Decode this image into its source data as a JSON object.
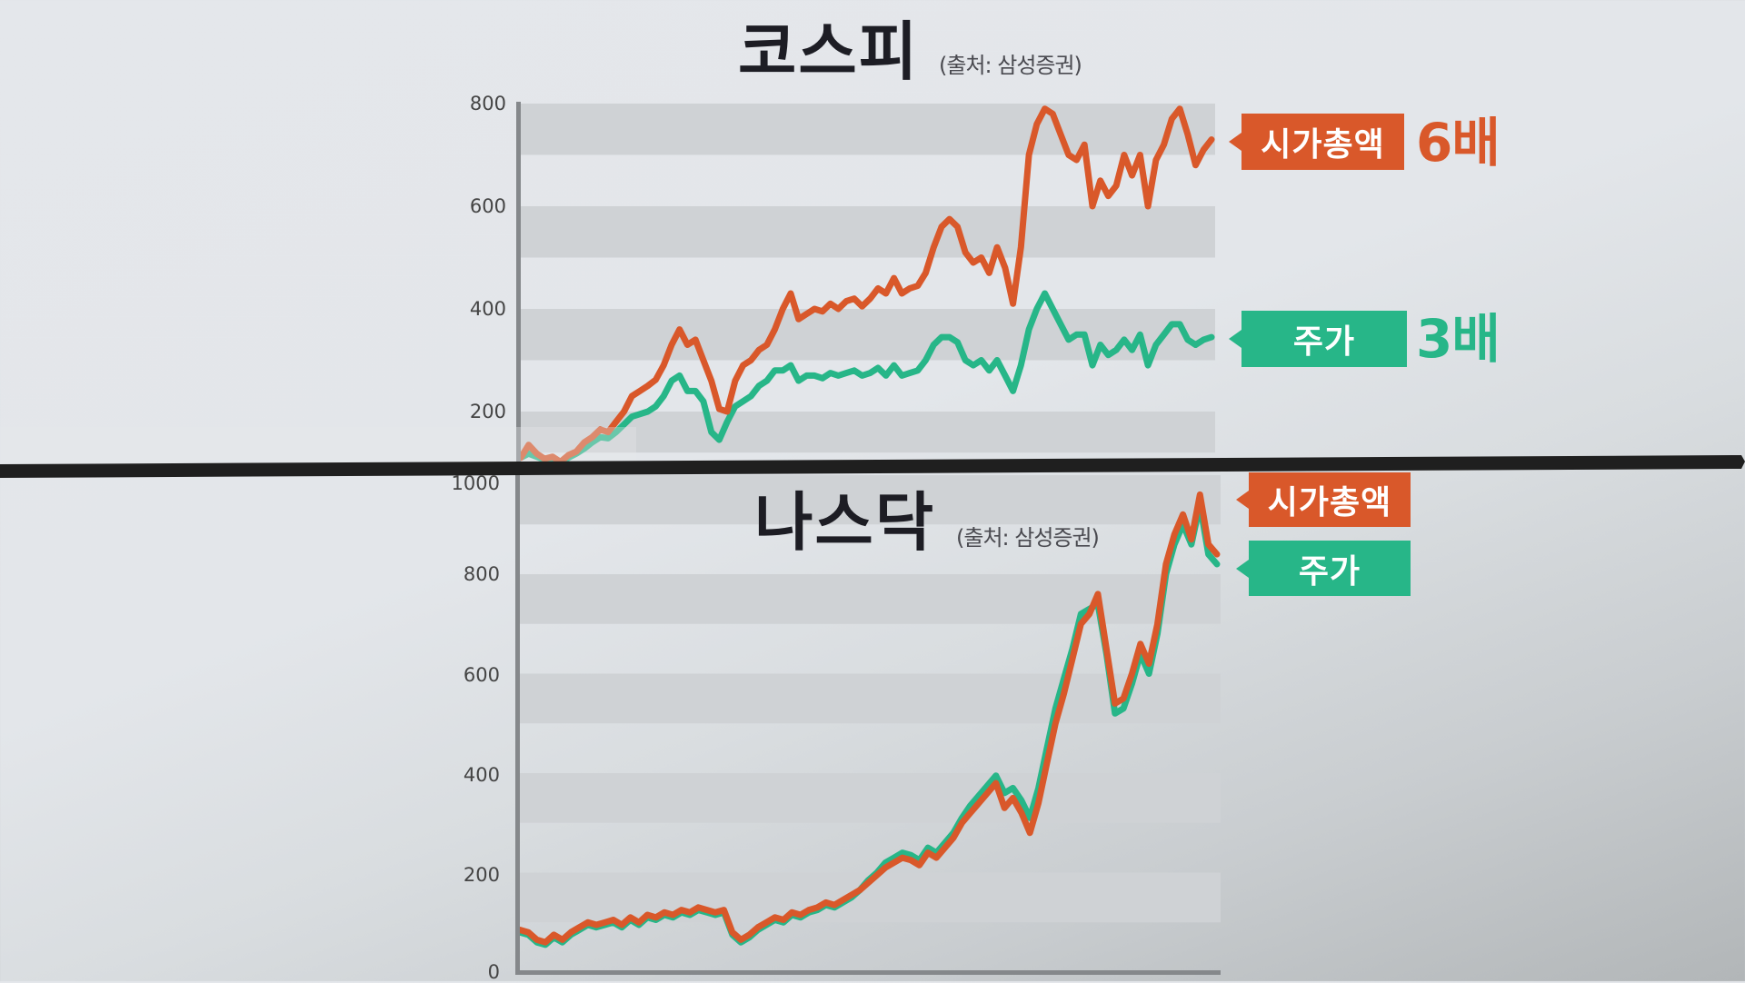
{
  "colors": {
    "market_cap": "#d9582a",
    "stock_price": "#27b688",
    "band": "#cfd2d5",
    "axis": "#85888b",
    "separator": "#1f1f1f"
  },
  "kospi": {
    "title": "코스피",
    "source": "(출처: 삼성증권)",
    "ticks": [
      "800",
      "600",
      "400",
      "200"
    ],
    "labels": {
      "market_cap": "시가총액",
      "stock_price": "주가"
    },
    "multiples": {
      "market_cap": "6배",
      "stock_price": "3배"
    }
  },
  "nasdaq": {
    "title": "나스닥",
    "source": "(출처: 삼성증권)",
    "ticks": [
      "1000",
      "800",
      "600",
      "400",
      "200",
      "0"
    ],
    "labels": {
      "market_cap": "시가총액",
      "stock_price": "주가"
    }
  },
  "chart_data": [
    {
      "type": "line",
      "title": "코스피 (출처: 삼성증권)",
      "xlabel": "",
      "ylabel": "",
      "ylim": [
        100,
        800
      ],
      "yticks": [
        200,
        400,
        600,
        800
      ],
      "grid": "alternating bands",
      "legend": {
        "position": "right",
        "entries": [
          "시가총액 6배",
          "주가 3배"
        ]
      },
      "series": [
        {
          "name": "시가총액",
          "color": "#d9582a",
          "values": [
            110,
            135,
            118,
            108,
            112,
            102,
            115,
            122,
            140,
            150,
            165,
            160,
            180,
            200,
            230,
            240,
            250,
            262,
            290,
            330,
            360,
            330,
            340,
            300,
            260,
            205,
            200,
            260,
            290,
            300,
            320,
            330,
            360,
            400,
            430,
            380,
            390,
            400,
            395,
            410,
            400,
            415,
            420,
            405,
            420,
            440,
            430,
            460,
            430,
            440,
            445,
            470,
            520,
            560,
            575,
            560,
            510,
            490,
            500,
            470,
            520,
            480,
            410,
            520,
            700,
            760,
            790,
            780,
            740,
            700,
            690,
            720,
            600,
            650,
            620,
            640,
            700,
            660,
            700,
            600,
            690,
            720,
            770,
            790,
            740,
            680,
            710,
            730
          ]
        },
        {
          "name": "주가",
          "color": "#27b688",
          "values": [
            110,
            118,
            112,
            106,
            110,
            100,
            110,
            118,
            128,
            140,
            150,
            148,
            160,
            175,
            190,
            195,
            200,
            210,
            230,
            260,
            270,
            240,
            240,
            220,
            160,
            145,
            180,
            210,
            220,
            230,
            250,
            260,
            280,
            280,
            290,
            260,
            270,
            270,
            265,
            275,
            270,
            275,
            280,
            270,
            275,
            285,
            270,
            290,
            270,
            275,
            280,
            300,
            330,
            345,
            345,
            335,
            300,
            290,
            300,
            280,
            300,
            270,
            240,
            290,
            360,
            400,
            430,
            400,
            370,
            340,
            350,
            350,
            290,
            330,
            310,
            320,
            340,
            320,
            350,
            290,
            330,
            350,
            370,
            370,
            340,
            330,
            340,
            345
          ]
        }
      ]
    },
    {
      "type": "line",
      "title": "나스닥 (출처: 삼성증권)",
      "xlabel": "",
      "ylabel": "",
      "ylim": [
        0,
        1000
      ],
      "yticks": [
        0,
        200,
        400,
        600,
        800,
        1000
      ],
      "grid": "alternating bands",
      "legend": {
        "position": "right",
        "entries": [
          "시가총액",
          "주가"
        ]
      },
      "series": [
        {
          "name": "시가총액",
          "color": "#d9582a",
          "values": [
            85,
            80,
            65,
            60,
            75,
            65,
            80,
            90,
            100,
            95,
            100,
            105,
            95,
            110,
            100,
            115,
            110,
            120,
            115,
            125,
            120,
            130,
            125,
            120,
            125,
            80,
            65,
            75,
            90,
            100,
            110,
            105,
            120,
            115,
            125,
            130,
            140,
            135,
            145,
            155,
            165,
            180,
            195,
            210,
            220,
            230,
            225,
            215,
            240,
            230,
            250,
            270,
            300,
            320,
            340,
            360,
            380,
            330,
            350,
            320,
            280,
            340,
            420,
            500,
            560,
            630,
            700,
            720,
            760,
            650,
            540,
            550,
            600,
            660,
            620,
            700,
            820,
            880,
            920,
            870,
            960,
            860,
            840
          ]
        },
        {
          "name": "주가",
          "color": "#27b688",
          "values": [
            80,
            75,
            60,
            55,
            70,
            60,
            75,
            85,
            95,
            90,
            95,
            100,
            90,
            105,
            95,
            110,
            105,
            115,
            110,
            120,
            115,
            125,
            120,
            115,
            120,
            75,
            60,
            70,
            85,
            95,
            105,
            100,
            115,
            110,
            120,
            125,
            135,
            130,
            140,
            150,
            165,
            185,
            200,
            220,
            230,
            240,
            235,
            225,
            250,
            240,
            260,
            280,
            310,
            335,
            355,
            375,
            395,
            360,
            370,
            345,
            310,
            370,
            450,
            530,
            590,
            650,
            720,
            730,
            740,
            640,
            520,
            530,
            580,
            640,
            600,
            680,
            800,
            860,
            900,
            860,
            940,
            840,
            820
          ]
        }
      ]
    }
  ]
}
